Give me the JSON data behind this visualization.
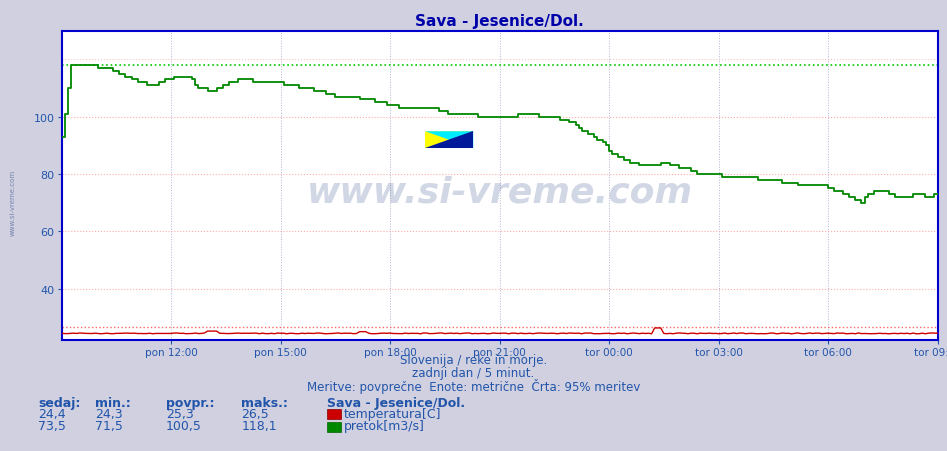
{
  "title": "Sava - Jesenice/Dol.",
  "subtitle1": "Slovenija / reke in morje.",
  "subtitle2": "zadnji dan / 5 minut.",
  "subtitle3": "Meritve: povprečne  Enote: metrične  Črta: 95% meritev",
  "bg_color": "#d0d0e0",
  "plot_bg_color": "#ffffff",
  "grid_color_h": "#ff9999",
  "grid_color_v": "#aaaacc",
  "border_color": "#0000cc",
  "title_color": "#0000aa",
  "label_color": "#2255aa",
  "watermark_color": "#1a3a7a",
  "ylim": [
    22,
    130
  ],
  "yticks": [
    40,
    60,
    80,
    100
  ],
  "n_points": 289,
  "temp_value": "24,4",
  "temp_min": "24,3",
  "temp_avg": "25,3",
  "temp_max": "26,5",
  "flow_sedaj": "73,5",
  "flow_min": "71,5",
  "flow_avg": "100,5",
  "flow_max": "118,1",
  "temp_color": "#cc0000",
  "flow_color": "#008800",
  "max_line_color_temp": "#ff6666",
  "max_line_color_flow": "#00cc00",
  "xtick_labels": [
    "pon 12:00",
    "pon 15:00",
    "pon 18:00",
    "pon 21:00",
    "tor 00:00",
    "tor 03:00",
    "tor 06:00",
    "tor 09:00"
  ],
  "xtick_positions": [
    36,
    72,
    108,
    144,
    180,
    216,
    252,
    288
  ],
  "footer_label_color": "#2255aa",
  "station_name": "Sava - Jesenice/Dol.",
  "legend_temp": "temperatura[C]",
  "legend_flow": "pretok[m3/s]",
  "sedaj_label": "sedaj:",
  "min_label": "min.:",
  "avg_label": "povpr.:",
  "max_label": "maks.:"
}
